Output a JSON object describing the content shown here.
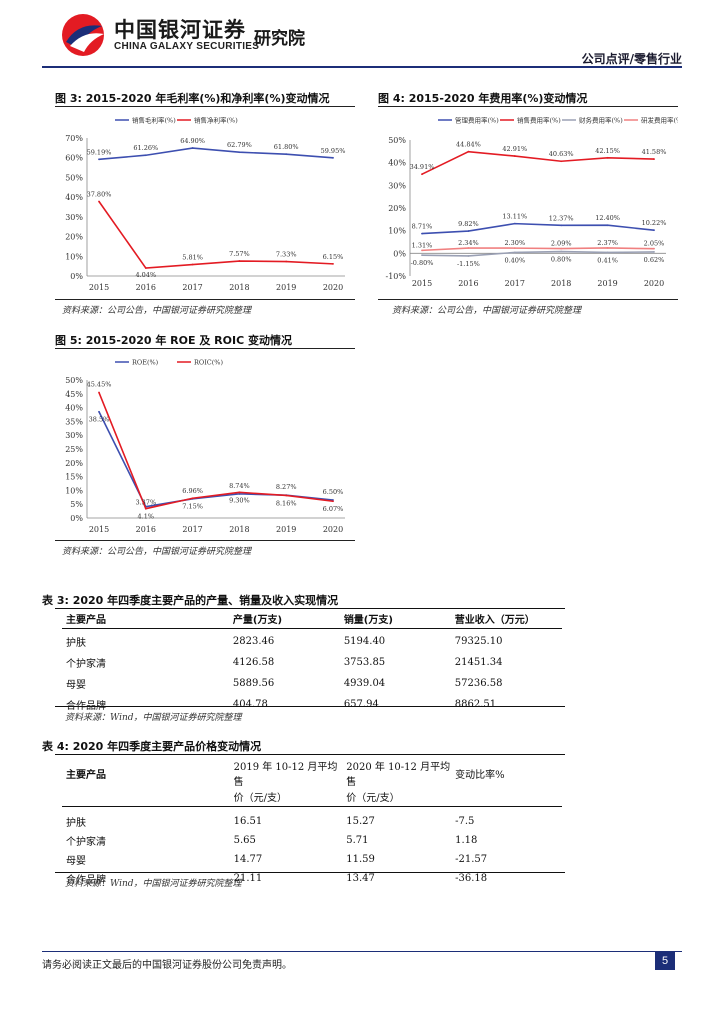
{
  "header": {
    "logo_cn": "中国银河证券",
    "logo_en": "CHINA GALAXY SECURITIES",
    "institute": "研究院",
    "tag": "公司点评/零售行业"
  },
  "colors": {
    "navy": "#1c2e78",
    "red": "#e31b23",
    "blue": "#3d4fb0",
    "pink": "#f08080",
    "gray": "#9aa0b4"
  },
  "figures": [
    {
      "title": "图 3:  2015-2020 年毛利率(%)和净利率(%)变动情况",
      "source": "资料来源：公司公告，中国银河证券研究院整理",
      "chart_data": {
        "type": "line",
        "categories": [
          "2015",
          "2016",
          "2017",
          "2018",
          "2019",
          "2020"
        ],
        "ylim": [
          0,
          70
        ],
        "yticks": [
          "0%",
          "10%",
          "20%",
          "30%",
          "40%",
          "50%",
          "60%",
          "70%"
        ],
        "series": [
          {
            "name": "销售毛利率(%)",
            "values": [
              59.19,
              61.26,
              64.9,
              62.79,
              61.8,
              59.95
            ],
            "labels": [
              "59.19%",
              "61.26%",
              "64.90%",
              "62.79%",
              "61.80%",
              "59.95%"
            ],
            "color": "#3d4fb0"
          },
          {
            "name": "销售净利率(%)",
            "values": [
              37.8,
              4.04,
              5.81,
              7.57,
              7.33,
              6.15
            ],
            "labels": [
              "37.80%",
              "4.04%",
              "5.81%",
              "7.57%",
              "7.33%",
              "6.15%"
            ],
            "color": "#e31b23"
          }
        ]
      }
    },
    {
      "title": "图 4:  2015-2020 年费用率(%)变动情况",
      "source": "资料来源：公司公告，中国银河证券研究院整理",
      "chart_data": {
        "type": "line",
        "categories": [
          "2015",
          "2016",
          "2017",
          "2018",
          "2019",
          "2020"
        ],
        "ylim": [
          -10,
          50
        ],
        "yticks": [
          "-10%",
          "0%",
          "10%",
          "20%",
          "30%",
          "40%",
          "50%"
        ],
        "series": [
          {
            "name": "管理费用率(%)",
            "values": [
              8.71,
              9.82,
              13.11,
              12.37,
              12.4,
              10.22
            ],
            "labels": [
              "8.71%",
              "9.82%",
              "13.11%",
              "12.37%",
              "12.40%",
              "10.22%"
            ],
            "color": "#3d4fb0"
          },
          {
            "name": "销售费用率(%)",
            "values": [
              34.91,
              44.84,
              42.91,
              40.63,
              42.15,
              41.58
            ],
            "labels": [
              "34.91%",
              "44.84%",
              "42.91%",
              "40.63%",
              "42.15%",
              "41.58%"
            ],
            "color": "#e31b23"
          },
          {
            "name": "财务费用率(%)",
            "values": [
              -0.8,
              -1.15,
              0.4,
              0.8,
              0.41,
              0.62
            ],
            "labels": [
              "-0.80%",
              "-1.15%",
              "0.40%",
              "0.80%",
              "0.41%",
              "0.62%"
            ],
            "color": "#9aa0b4"
          },
          {
            "name": "研发费用率(%)",
            "values": [
              1.31,
              2.34,
              2.3,
              2.09,
              2.37,
              2.05
            ],
            "labels": [
              "1.31%",
              "2.34%",
              "2.30%",
              "2.09%",
              "2.37%",
              "2.05%"
            ],
            "color": "#f08080"
          }
        ]
      }
    },
    {
      "title": "图 5:  2015-2020 年 ROE 及 ROIC 变动情况",
      "source": "资料来源：公司公告，中国银河证券研究院整理",
      "chart_data": {
        "type": "line",
        "categories": [
          "2015",
          "2016",
          "2017",
          "2018",
          "2019",
          "2020"
        ],
        "ylim": [
          0,
          50
        ],
        "yticks": [
          "0%",
          "5%",
          "10%",
          "15%",
          "20%",
          "25%",
          "30%",
          "35%",
          "40%",
          "45%",
          "50%"
        ],
        "series": [
          {
            "name": "ROE(%)",
            "values": [
              38.5,
              4.1,
              6.96,
              8.74,
              8.27,
              6.5
            ],
            "labels": [
              "38.5%",
              "4.1%",
              "6.96%",
              "8.74%",
              "8.27%",
              "6.50%"
            ],
            "color": "#3d4fb0"
          },
          {
            "name": "ROIC(%)",
            "values": [
              45.45,
              3.37,
              7.15,
              9.3,
              8.16,
              6.07
            ],
            "labels": [
              "45.45%",
              "3.37%",
              "7.15%",
              "9.30%",
              "8.16%",
              "6.07%"
            ],
            "color": "#e31b23"
          }
        ]
      }
    }
  ],
  "table3": {
    "title": "表 3:  2020 年四季度主要产品的产量、销量及收入实现情况",
    "headers": [
      "主要产品",
      "产量(万支)",
      "销量(万支)",
      "营业收入（万元）"
    ],
    "rows": [
      [
        "护肤",
        "2823.46",
        "5194.40",
        "79325.10"
      ],
      [
        "个护家清",
        "4126.58",
        "3753.85",
        "21451.34"
      ],
      [
        "母婴",
        "5889.56",
        "4939.04",
        "57236.58"
      ],
      [
        "合作品牌",
        "404.78",
        "657.94",
        "8862.51"
      ]
    ],
    "source": "资料来源：Wind，中国银河证券研究院整理"
  },
  "table4": {
    "title": "表 4:  2020 年四季度主要产品价格变动情况",
    "headers": [
      "主要产品",
      "2019 年 10-12 月平均售价（元/支）",
      "2020 年 10-12 月平均售价（元/支）",
      "变动比率%"
    ],
    "header_line1": [
      "主要产品",
      "2019 年 10-12 月平均售",
      "2020 年 10-12 月平均售",
      "变动比率%"
    ],
    "header_line2": [
      "",
      "价（元/支）",
      "价（元/支）",
      ""
    ],
    "rows": [
      [
        "护肤",
        "16.51",
        "15.27",
        "-7.5"
      ],
      [
        "个护家清",
        "5.65",
        "5.71",
        "1.18"
      ],
      [
        "母婴",
        "14.77",
        "11.59",
        "-21.57"
      ],
      [
        "合作品牌",
        "21.11",
        "13.47",
        "-36.18"
      ]
    ],
    "source": "资料来源：Wind，中国银河证券研究院整理"
  },
  "footer": {
    "disclaimer": "请务必阅读正文最后的中国银河证券股份公司免责声明。",
    "page": "5"
  }
}
